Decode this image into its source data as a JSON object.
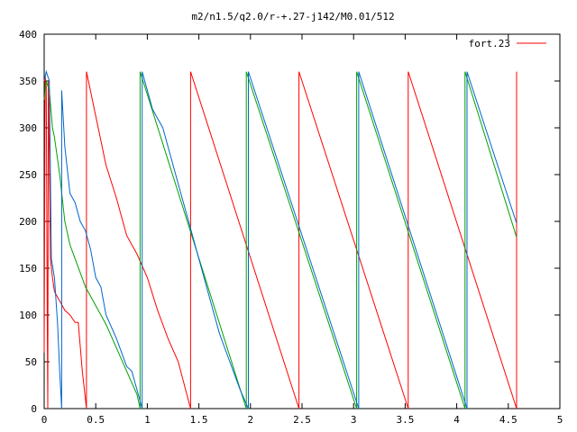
{
  "chart_data": {
    "type": "line",
    "title": "m2/n1.5/q2.0/r-+.27-j142/M0.01/512",
    "xlabel": "",
    "ylabel": "",
    "xlim": [
      0,
      5
    ],
    "ylim": [
      0,
      400
    ],
    "x_ticks": [
      "0",
      "0.5",
      "1",
      "1.5",
      "2",
      "2.5",
      "3",
      "3.5",
      "4",
      "4.5",
      "5"
    ],
    "y_ticks": [
      "0",
      "50",
      "100",
      "150",
      "200",
      "250",
      "300",
      "350",
      "400"
    ],
    "grid": false,
    "legend_position": "top-right",
    "series": [
      {
        "name": "fort.23",
        "color": "#ff0000",
        "points": [
          [
            0.0,
            60
          ],
          [
            0.01,
            355
          ],
          [
            0.02,
            345
          ],
          [
            0.03,
            100
          ],
          [
            0.035,
            0
          ],
          [
            0.04,
            350
          ],
          [
            0.05,
            270
          ],
          [
            0.06,
            160
          ],
          [
            0.08,
            140
          ],
          [
            0.1,
            125
          ],
          [
            0.15,
            115
          ],
          [
            0.2,
            105
          ],
          [
            0.25,
            100
          ],
          [
            0.3,
            92
          ],
          [
            0.33,
            92
          ],
          [
            0.37,
            40
          ],
          [
            0.41,
            0
          ],
          [
            0.41,
            360
          ],
          [
            0.6,
            260
          ],
          [
            0.7,
            225
          ],
          [
            0.8,
            185
          ],
          [
            0.9,
            165
          ],
          [
            1.0,
            140
          ],
          [
            1.1,
            105
          ],
          [
            1.2,
            75
          ],
          [
            1.3,
            50
          ],
          [
            1.42,
            0
          ],
          [
            1.42,
            360
          ],
          [
            2.47,
            0
          ],
          [
            2.47,
            360
          ],
          [
            3.53,
            0
          ],
          [
            3.53,
            360
          ],
          [
            4.58,
            0
          ],
          [
            4.58,
            360
          ]
        ]
      },
      {
        "name": "",
        "color": "#00a000",
        "points": [
          [
            0.0,
            330
          ],
          [
            0.02,
            350
          ],
          [
            0.05,
            340
          ],
          [
            0.08,
            300
          ],
          [
            0.1,
            290
          ],
          [
            0.15,
            250
          ],
          [
            0.2,
            200
          ],
          [
            0.25,
            175
          ],
          [
            0.3,
            160
          ],
          [
            0.4,
            130
          ],
          [
            0.5,
            110
          ],
          [
            0.6,
            90
          ],
          [
            0.7,
            65
          ],
          [
            0.8,
            40
          ],
          [
            0.9,
            15
          ],
          [
            0.93,
            0
          ],
          [
            0.93,
            360
          ],
          [
            1.96,
            0
          ],
          [
            1.96,
            360
          ],
          [
            3.03,
            0
          ],
          [
            3.03,
            360
          ],
          [
            4.08,
            0
          ],
          [
            4.08,
            360
          ],
          [
            4.58,
            183
          ]
        ]
      },
      {
        "name": "",
        "color": "#0066cc",
        "points": [
          [
            0.0,
            350
          ],
          [
            0.02,
            360
          ],
          [
            0.05,
            350
          ],
          [
            0.07,
            160
          ],
          [
            0.1,
            140
          ],
          [
            0.13,
            90
          ],
          [
            0.15,
            40
          ],
          [
            0.17,
            0
          ],
          [
            0.17,
            340
          ],
          [
            0.2,
            280
          ],
          [
            0.25,
            230
          ],
          [
            0.3,
            220
          ],
          [
            0.35,
            200
          ],
          [
            0.4,
            190
          ],
          [
            0.45,
            170
          ],
          [
            0.5,
            140
          ],
          [
            0.55,
            130
          ],
          [
            0.6,
            100
          ],
          [
            0.7,
            75
          ],
          [
            0.8,
            45
          ],
          [
            0.85,
            40
          ],
          [
            0.9,
            20
          ],
          [
            0.95,
            0
          ],
          [
            0.95,
            360
          ],
          [
            1.0,
            340
          ],
          [
            1.05,
            320
          ],
          [
            1.1,
            310
          ],
          [
            1.15,
            300
          ],
          [
            1.2,
            280
          ],
          [
            1.3,
            240
          ],
          [
            1.4,
            200
          ],
          [
            1.5,
            160
          ],
          [
            1.6,
            120
          ],
          [
            1.7,
            80
          ],
          [
            1.8,
            50
          ],
          [
            1.9,
            20
          ],
          [
            1.98,
            0
          ],
          [
            1.98,
            360
          ],
          [
            3.05,
            0
          ],
          [
            3.05,
            360
          ],
          [
            4.1,
            0
          ],
          [
            4.1,
            360
          ],
          [
            4.58,
            198
          ]
        ]
      }
    ]
  }
}
